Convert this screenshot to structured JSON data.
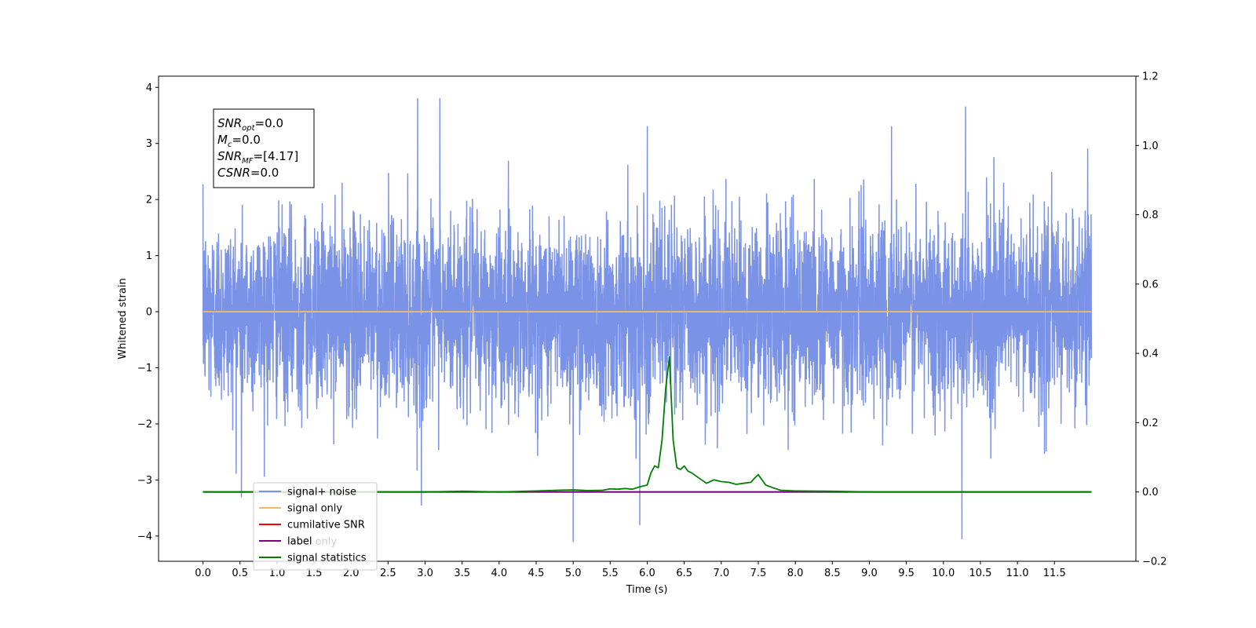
{
  "chart_data": {
    "type": "line",
    "title": "",
    "xlabel": "Time (s)",
    "ylabel": "Whitened strain",
    "xlim": [
      -0.6,
      12.6
    ],
    "ylim": [
      -4.45,
      4.2
    ],
    "ylim_right": [
      -0.2,
      1.2
    ],
    "x_ticks": [
      0.0,
      0.5,
      1.0,
      1.5,
      2.0,
      2.5,
      3.0,
      3.5,
      4.0,
      4.5,
      5.0,
      5.5,
      6.0,
      6.5,
      7.0,
      7.5,
      8.0,
      8.5,
      9.0,
      9.5,
      10.0,
      10.5,
      11.0,
      11.5
    ],
    "x_tick_labels": [
      "0.0",
      "0.5",
      "1.0",
      "1.5",
      "2.0",
      "2.5",
      "3.0",
      "3.5",
      "4.0",
      "4.5",
      "5.0",
      "5.5",
      "6.0",
      "6.5",
      "7.0",
      "7.5",
      "8.0",
      "8.5",
      "9.0",
      "9.5",
      "10.0",
      "10.5",
      "11.0",
      "11.5"
    ],
    "y_ticks": [
      -4,
      -3,
      -2,
      -1,
      0,
      1,
      2,
      3,
      4
    ],
    "y_tick_labels": [
      "−4",
      "−3",
      "−2",
      "−1",
      "0",
      "1",
      "2",
      "3",
      "4"
    ],
    "y_ticks_right": [
      -0.2,
      0.0,
      0.2,
      0.4,
      0.6,
      0.8,
      1.0,
      1.2
    ],
    "y_tick_labels_right": [
      "−0.2",
      "0.0",
      "0.2",
      "0.4",
      "0.6",
      "0.8",
      "1.0",
      "1.2"
    ],
    "grid": false,
    "legend_position": "lower-left",
    "series": [
      {
        "name": "signal+ noise",
        "axis": "left",
        "color": "#7b93e6",
        "description_values": {
          "x_range": [
            0.0,
            12.0
          ],
          "typical_band": [
            -2.0,
            2.0
          ],
          "spikes": [
            [
              0.52,
              -3.3
            ],
            [
              2.9,
              3.8
            ],
            [
              2.95,
              -3.45
            ],
            [
              3.2,
              3.8
            ],
            [
              5.0,
              -4.1
            ],
            [
              5.9,
              -3.8
            ],
            [
              6.0,
              3.3
            ],
            [
              9.3,
              3.3
            ],
            [
              10.25,
              -4.05
            ],
            [
              10.3,
              3.65
            ],
            [
              11.95,
              2.9
            ]
          ]
        }
      },
      {
        "name": "signal only",
        "axis": "left",
        "color": "#f5b860",
        "x": [
          0.0,
          12.0
        ],
        "y": [
          0.0,
          0.0
        ]
      },
      {
        "name": "cumilative SNR",
        "axis": "right",
        "color": "#ff0000",
        "x": [
          0.0,
          12.0
        ],
        "y": [
          0.0,
          0.0
        ]
      },
      {
        "name": "label",
        "axis": "right",
        "color": "#800080",
        "x": [
          0.0,
          12.0
        ],
        "y": [
          0.0,
          0.0
        ]
      },
      {
        "name": "signal statistics",
        "axis": "right",
        "color": "#008000",
        "x": [
          0.0,
          1.0,
          2.0,
          3.0,
          3.5,
          4.0,
          4.5,
          4.8,
          5.0,
          5.2,
          5.4,
          5.5,
          5.6,
          5.7,
          5.8,
          5.9,
          6.0,
          6.05,
          6.1,
          6.15,
          6.2,
          6.25,
          6.3,
          6.35,
          6.4,
          6.45,
          6.5,
          6.55,
          6.6,
          6.7,
          6.8,
          6.9,
          7.0,
          7.1,
          7.2,
          7.3,
          7.4,
          7.45,
          7.5,
          7.6,
          7.7,
          7.8,
          8.0,
          8.5,
          9.0,
          10.0,
          11.0,
          12.0
        ],
        "y": [
          0.0,
          0.0,
          0.0,
          0.0,
          0.002,
          0.0,
          0.003,
          0.005,
          0.006,
          0.004,
          0.005,
          0.009,
          0.008,
          0.01,
          0.008,
          0.015,
          0.02,
          0.055,
          0.075,
          0.07,
          0.15,
          0.3,
          0.39,
          0.15,
          0.07,
          0.065,
          0.075,
          0.06,
          0.055,
          0.04,
          0.025,
          0.035,
          0.03,
          0.028,
          0.022,
          0.025,
          0.028,
          0.04,
          0.05,
          0.02,
          0.012,
          0.005,
          0.003,
          0.002,
          0.0,
          0.0,
          0.0,
          0.0
        ]
      }
    ],
    "annotation_box": {
      "lines": [
        {
          "main": "SNR",
          "sub": "opt",
          "rest": "=0.0"
        },
        {
          "main": "M",
          "sub": "c",
          "rest": "=0.0"
        },
        {
          "main": "SNR",
          "sub": "MF",
          "rest": "=[4.17]"
        },
        {
          "main": "CSNR",
          "sub": "",
          "rest": "=0.0"
        }
      ]
    },
    "legend_overlay_text": "label only"
  }
}
